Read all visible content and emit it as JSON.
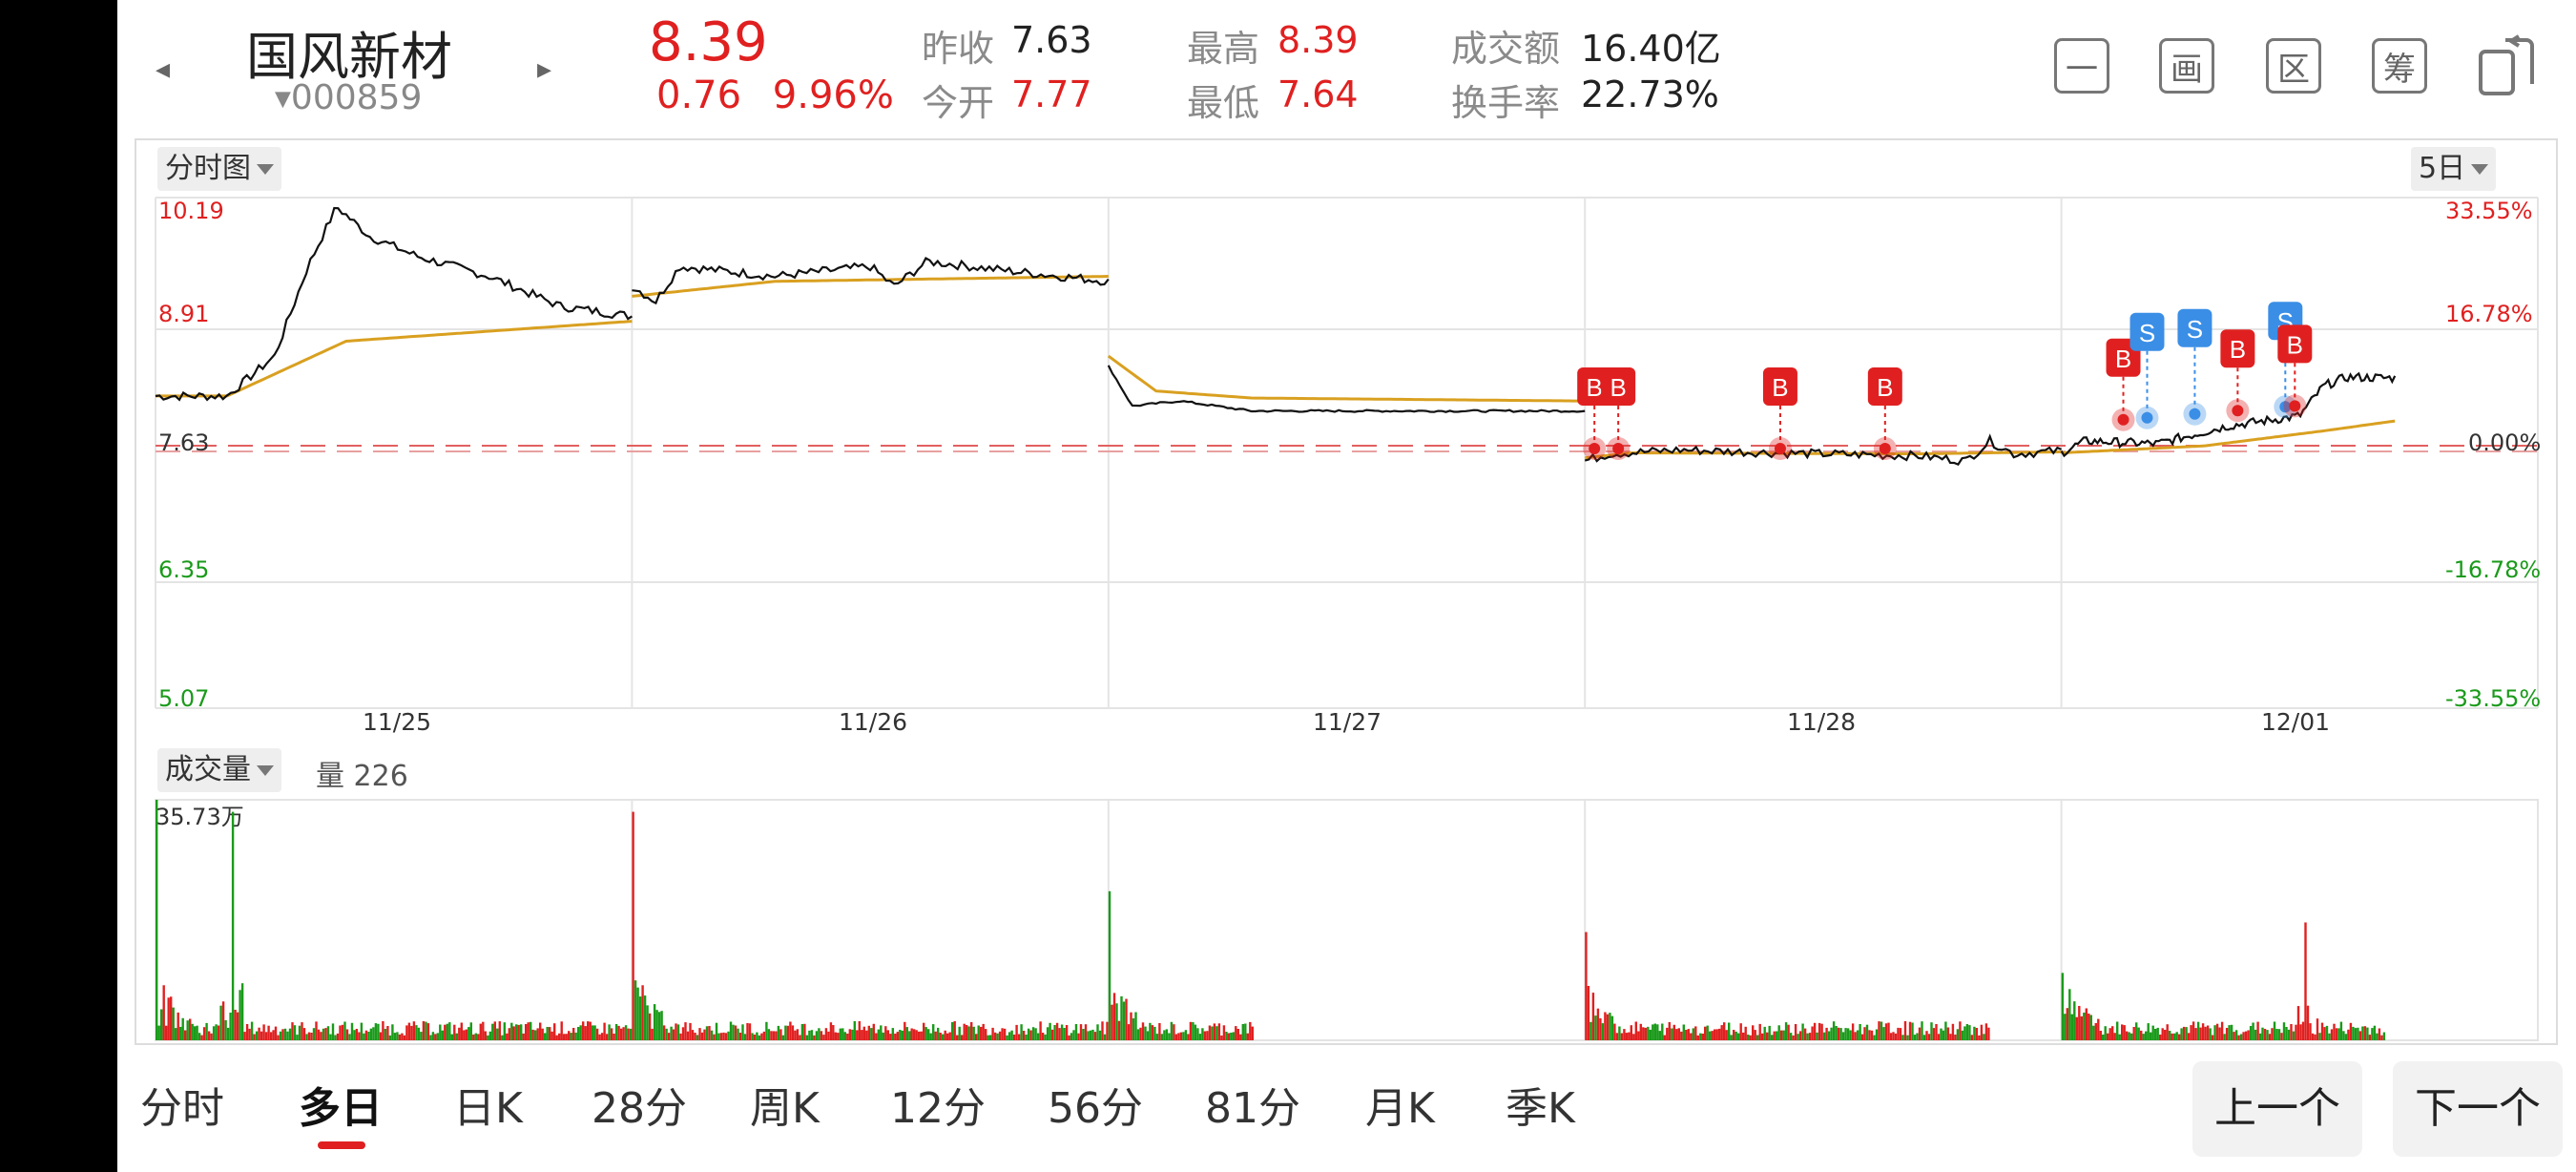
{
  "stock": {
    "name": "国风新材",
    "code": "000859",
    "price": "8.39",
    "change": "0.76",
    "change_pct": "9.96%",
    "prev_close_label": "昨收",
    "prev_close": "7.63",
    "open_label": "今开",
    "open": "7.77",
    "high_label": "最高",
    "high": "8.39",
    "low_label": "最低",
    "low": "7.64",
    "turnover_label": "成交额",
    "turnover": "16.40亿",
    "turnover_rate_label": "换手率",
    "turnover_rate": "22.73%"
  },
  "toolbar": {
    "btn1": "一",
    "btn2": "画",
    "btn3": "区",
    "btn4": "筹"
  },
  "price_chart": {
    "selector": "分时图",
    "period": "5日",
    "y_left": [
      "10.19",
      "8.91",
      "7.63",
      "6.35",
      "5.07"
    ],
    "y_right": [
      "33.55%",
      "16.78%",
      "0.00%",
      "-16.78%",
      "-33.55%"
    ],
    "dates": [
      "11/25",
      "11/26",
      "11/27",
      "11/28",
      "12/01"
    ],
    "markers": [
      {
        "t": "B",
        "day": 3,
        "pos": 0.02
      },
      {
        "t": "B",
        "day": 3,
        "pos": 0.07
      },
      {
        "t": "B",
        "day": 3,
        "pos": 0.41
      },
      {
        "t": "B",
        "day": 3,
        "pos": 0.63
      },
      {
        "t": "B",
        "day": 4,
        "pos": 0.13
      },
      {
        "t": "S",
        "day": 4,
        "pos": 0.18
      },
      {
        "t": "S",
        "day": 4,
        "pos": 0.28
      },
      {
        "t": "B",
        "day": 4,
        "pos": 0.37
      },
      {
        "t": "S",
        "day": 4,
        "pos": 0.47
      },
      {
        "t": "B",
        "day": 4,
        "pos": 0.49
      }
    ]
  },
  "volume_chart": {
    "selector": "成交量",
    "vol_label": "量",
    "vol_value": "226",
    "max_label": "35.73万"
  },
  "bottom_tabs": [
    "分时",
    "多日",
    "日K",
    "28分",
    "周K",
    "12分",
    "56分",
    "81分",
    "月K",
    "季K"
  ],
  "active_tab": 1,
  "nav": {
    "prev": "上一个",
    "next": "下一个"
  },
  "colors": {
    "up": "#e02020",
    "down": "#1a9a1a",
    "avg": "#d9a020",
    "price": "#111111",
    "buy": "#e02020",
    "sell": "#3a8ee6"
  }
}
